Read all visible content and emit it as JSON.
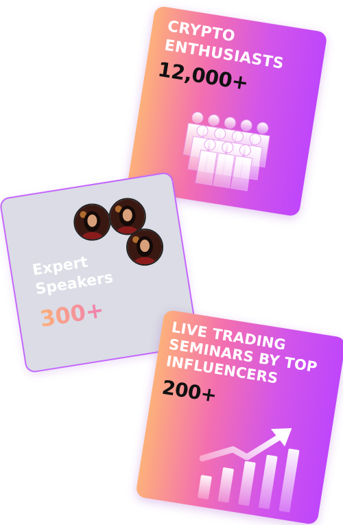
{
  "cards": {
    "crypto": {
      "title_lines": [
        "CRYPTO",
        "ENTHUSIASTS"
      ],
      "value": "12,000+",
      "icon": "crowd-icon"
    },
    "experts": {
      "label_lines": [
        "Expert",
        "Speakers"
      ],
      "value": "300+",
      "avatars": [
        "speaker-avatar",
        "speaker-avatar",
        "speaker-avatar"
      ]
    },
    "trading": {
      "title_lines": [
        "LIVE TRADING",
        "SEMINARS BY TOP",
        "INFLUENCERS"
      ],
      "value": "200+",
      "icon": "growth-chart-icon"
    }
  },
  "colors": {
    "gradient_start": "#fdb07a",
    "gradient_mid": "#f36fb0",
    "gradient_end": "#bf46fb",
    "expert_card_bg": "#dbdce5",
    "expert_card_border": "#c466ff"
  }
}
